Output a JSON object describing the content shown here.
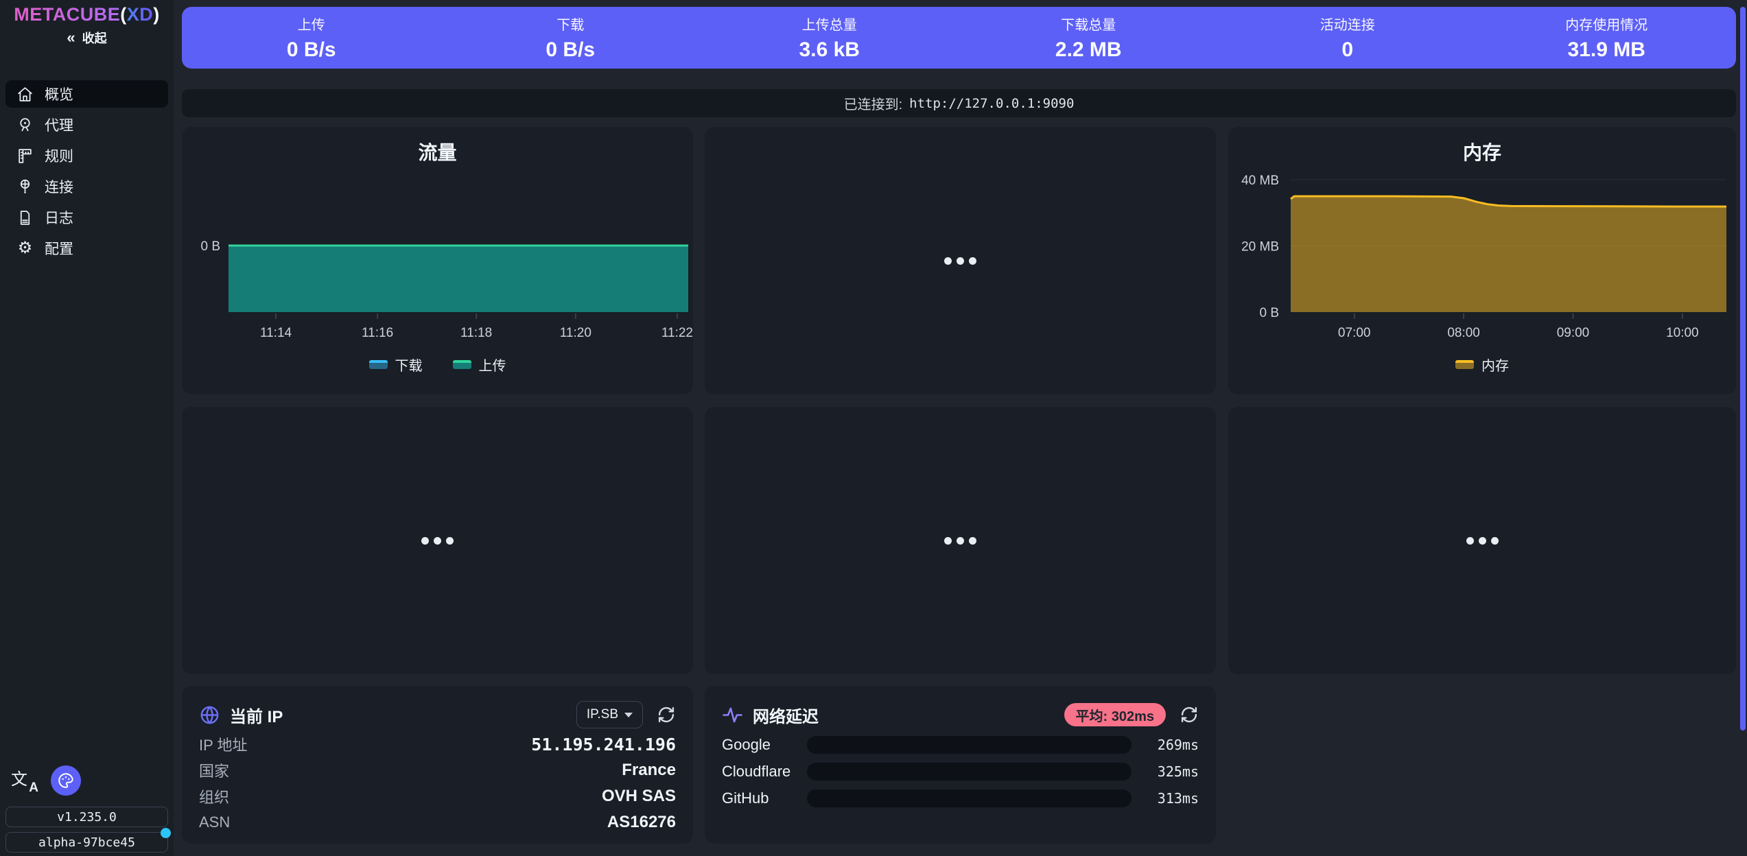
{
  "brand": {
    "name": "METACUBE",
    "paren_open": "(",
    "accent": "XD",
    "paren_close": ")"
  },
  "colors": {
    "accent": "#5d60f6",
    "pink": "#f87289",
    "amber": "#fbbd23",
    "teal_line": "#31d49c",
    "teal_fill": "rgba(20,184,166,0.62)",
    "blue_line": "#38bdf8",
    "notification_cyan": "#2bc4f5"
  },
  "sidebar": {
    "collapse_label": "收起",
    "items": [
      {
        "label": "概览",
        "icon": "home-icon",
        "active": true
      },
      {
        "label": "代理",
        "icon": "globe-stand-icon",
        "active": false
      },
      {
        "label": "规则",
        "icon": "ruler-icon",
        "active": false
      },
      {
        "label": "连接",
        "icon": "globe-pole-icon",
        "active": false
      },
      {
        "label": "日志",
        "icon": "file-text-icon",
        "active": false
      },
      {
        "label": "配置",
        "icon": "gear-icon",
        "active": false
      }
    ],
    "version": "v1.235.0",
    "build": "alpha-97bce45"
  },
  "stats": [
    {
      "label": "上传",
      "value": "0 B/s"
    },
    {
      "label": "下载",
      "value": "0 B/s"
    },
    {
      "label": "上传总量",
      "value": "3.6 kB"
    },
    {
      "label": "下载总量",
      "value": "2.2 MB"
    },
    {
      "label": "活动连接",
      "value": "0"
    },
    {
      "label": "内存使用情况",
      "value": "31.9 MB"
    }
  ],
  "connection": {
    "prefix": "已连接到:",
    "url": "http://127.0.0.1:9090"
  },
  "chart_data": [
    {
      "type": "area",
      "title": "流量",
      "x_ticks": [
        {
          "label": "11:14",
          "f": 0.103
        },
        {
          "label": "11:16",
          "f": 0.324
        },
        {
          "label": "11:18",
          "f": 0.539
        },
        {
          "label": "11:20",
          "f": 0.755
        },
        {
          "label": "11:22",
          "f": 0.976
        }
      ],
      "y_zero_label": "0 B",
      "series": [
        {
          "name": "下载",
          "line": "#38bdf8",
          "fill": "rgba(56,189,248,0.45)",
          "values": [
            0,
            0,
            0,
            0,
            0,
            0,
            0,
            0,
            0,
            0
          ]
        },
        {
          "name": "上传",
          "line": "#31d49c",
          "fill": "rgba(20,184,166,0.62)",
          "values": [
            0,
            0,
            0,
            0,
            0,
            0,
            0,
            0,
            0,
            0
          ]
        }
      ]
    },
    {
      "type": "area",
      "title": "内存",
      "unit": "MB",
      "t_max": 239,
      "y_ticks": [
        {
          "label": "40 MB",
          "mb": 40
        },
        {
          "label": "20 MB",
          "mb": 20
        },
        {
          "label": "0 B",
          "mb": 0
        }
      ],
      "x_ticks": [
        {
          "label": "07:00",
          "f": 0.146
        },
        {
          "label": "08:00",
          "f": 0.397
        },
        {
          "label": "09:00",
          "f": 0.648
        },
        {
          "label": "10:00",
          "f": 0.899
        }
      ],
      "series": [
        {
          "name": "内存",
          "line": "#fbbd23",
          "fill": "rgba(251,189,35,0.5)",
          "points": [
            [
              0,
              34.2
            ],
            [
              2,
              35.0
            ],
            [
              25,
              35.0
            ],
            [
              55,
              35.0
            ],
            [
              88,
              34.9
            ],
            [
              95,
              34.4
            ],
            [
              102,
              33.3
            ],
            [
              108,
              32.6
            ],
            [
              114,
              32.2
            ],
            [
              121,
              32.05
            ],
            [
              145,
              32.0
            ],
            [
              175,
              31.95
            ],
            [
              210,
              31.9
            ],
            [
              239,
              31.9
            ]
          ]
        }
      ]
    }
  ],
  "ip_card": {
    "title": "当前 IP",
    "source_label": "IP.SB",
    "rows": [
      {
        "label": "IP 地址",
        "value": "51.195.241.196"
      },
      {
        "label": "国家",
        "value": "France"
      },
      {
        "label": "组织",
        "value": "OVH SAS"
      },
      {
        "label": "ASN",
        "value": "AS16276"
      }
    ]
  },
  "latency_card": {
    "title": "网络延迟",
    "average": "平均: 302ms",
    "max_ms": 500,
    "rows": [
      {
        "name": "Google",
        "ms": 269,
        "display": "269ms",
        "color": "#fbbd23"
      },
      {
        "name": "Cloudflare",
        "ms": 325,
        "display": "325ms",
        "color": "#f87289"
      },
      {
        "name": "GitHub",
        "ms": 313,
        "display": "313ms",
        "color": "#f87289"
      }
    ]
  }
}
